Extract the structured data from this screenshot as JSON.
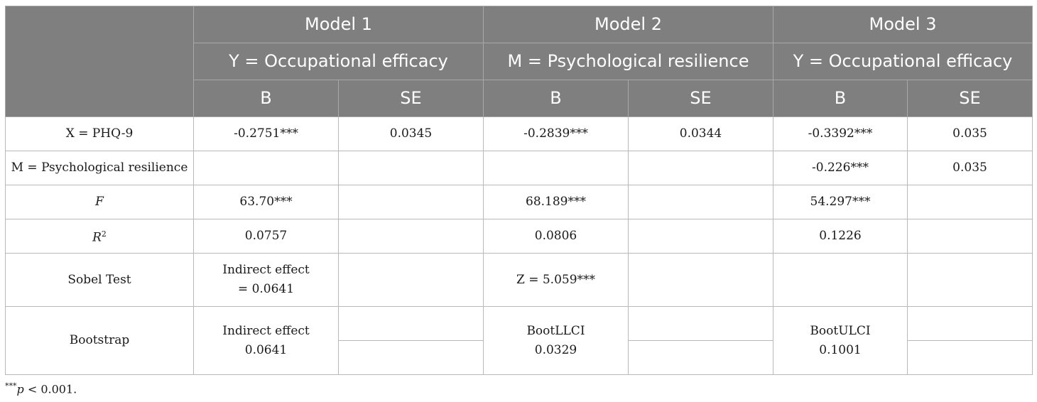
{
  "header": {
    "models": [
      "Model 1",
      "Model 2",
      "Model 3"
    ],
    "outcomes": [
      "Y = Occupational efficacy",
      "M = Psychological resilience",
      "Y = Occupational efficacy"
    ],
    "b_label": "B",
    "se_label": "SE"
  },
  "rows": {
    "x": {
      "label": "X = PHQ-9",
      "m1_b": "-0.2751***",
      "m1_se": "0.0345",
      "m2_b": "-0.2839***",
      "m2_se": "0.0344",
      "m3_b": "-0.3392***",
      "m3_se": "0.035"
    },
    "m": {
      "label": "M = Psychological resilience",
      "m3_b": "-0.226***",
      "m3_se": "0.035"
    },
    "f": {
      "label": "F",
      "m1_b": "63.70***",
      "m2_b": "68.189***",
      "m3_b": "54.297***"
    },
    "r2": {
      "label_base": "R",
      "label_sup": "2",
      "m1_b": "0.0757",
      "m2_b": "0.0806",
      "m3_b": "0.1226"
    },
    "sobel": {
      "label": "Sobel Test",
      "m1_line1": "Indirect effect",
      "m1_line2": "= 0.0641",
      "m2_b": "Z = 5.059***"
    },
    "bootstrap": {
      "label": "Bootstrap",
      "m1_line1": "Indirect effect",
      "m1_line2": "0.0641",
      "m2_line1": "BootLLCI",
      "m2_line2": "0.0329",
      "m3_line1": "BootULCI",
      "m3_line2": "0.1001"
    }
  },
  "footnote": {
    "stars": "***",
    "p": "p",
    "text": " < 0.001."
  }
}
